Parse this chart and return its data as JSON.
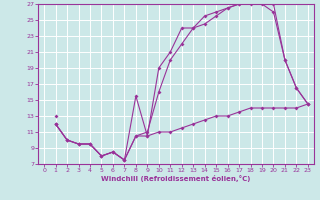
{
  "xlabel": "Windchill (Refroidissement éolien,°C)",
  "ylabel": "",
  "bg_color": "#cce8e8",
  "grid_color": "#ffffff",
  "line_color": "#993399",
  "xlim": [
    -0.5,
    23.5
  ],
  "ylim": [
    7,
    27
  ],
  "xticks": [
    0,
    1,
    2,
    3,
    4,
    5,
    6,
    7,
    8,
    9,
    10,
    11,
    12,
    13,
    14,
    15,
    16,
    17,
    18,
    19,
    20,
    21,
    22,
    23
  ],
  "yticks": [
    7,
    9,
    11,
    13,
    15,
    17,
    19,
    21,
    23,
    25,
    27
  ],
  "line1_x": [
    1,
    2,
    3,
    4,
    5,
    6,
    7,
    8,
    9,
    10,
    11,
    12,
    13,
    14,
    15,
    16,
    17,
    18,
    19,
    20,
    21,
    22,
    23
  ],
  "line1_y": [
    12,
    10,
    9.5,
    9.5,
    8,
    8.5,
    7.5,
    10.5,
    10.5,
    11,
    11,
    11.5,
    12,
    12.5,
    13,
    13,
    13.5,
    14,
    14,
    14,
    14,
    14,
    14.5
  ],
  "line2_x": [
    1,
    2,
    3,
    4,
    5,
    6,
    7,
    8,
    9,
    10,
    11,
    12,
    13,
    14,
    15,
    16,
    17,
    18,
    19,
    20,
    21,
    22,
    23
  ],
  "line2_y": [
    12,
    10,
    9.5,
    9.5,
    8,
    8.5,
    7.5,
    15.5,
    10.5,
    19,
    21,
    24,
    24,
    25.5,
    26,
    26.5,
    27,
    27,
    27,
    26,
    20,
    16.5,
    14.5
  ],
  "line3_x": [
    1,
    2,
    3,
    4,
    5,
    6,
    7,
    8,
    9,
    10,
    11,
    12,
    13,
    14,
    15,
    16,
    17,
    18,
    19,
    20,
    21,
    22,
    23
  ],
  "line3_y": [
    12,
    10,
    9.5,
    9.5,
    8,
    8.5,
    7.5,
    10.5,
    11,
    16,
    20,
    22,
    24,
    24.5,
    25.5,
    26.5,
    27,
    27.5,
    27.5,
    27,
    20,
    16.5,
    14.5
  ],
  "line_single_x": [
    1
  ],
  "line_single_y": [
    13
  ],
  "tick_fontsize": 4.5,
  "xlabel_fontsize": 5.0
}
